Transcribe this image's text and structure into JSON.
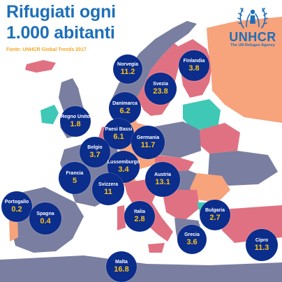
{
  "header": {
    "title_line1": "Rifugiati ogni",
    "title_line2": "1.000 abitanti",
    "source": "Fonte: UNHCR Global Trends 2017"
  },
  "logo": {
    "name": "UNHCR",
    "tagline": "The UN Refugee Agency",
    "icon": "unhcr-hands-person-laurel-icon"
  },
  "colors": {
    "title": "#1d6fb8",
    "source": "#f5a623",
    "bubble": "#0b2d8c",
    "bubble_name": "#ffffff",
    "bubble_value": "#f8c21c",
    "land_pink": "#e07182",
    "land_slate": "#7a7ea0",
    "land_salmon": "#f7a37c",
    "land_teal": "#3fc8b6"
  },
  "units": "Rifugiati ogni 1.000 abitanti",
  "countries": [
    {
      "id": "norvegia",
      "name": "Norvegia",
      "value": "11.2"
    },
    {
      "id": "finlandia",
      "name": "Finlandia",
      "value": "3.8"
    },
    {
      "id": "svezia",
      "name": "Svezia",
      "value": "23.8"
    },
    {
      "id": "danimarca",
      "name": "Danimarca",
      "value": "6.2"
    },
    {
      "id": "regno-unito",
      "name": "Regno Unito",
      "value": "1.8"
    },
    {
      "id": "paesi-bassi",
      "name": "Paesi Bassi",
      "value": "6.1"
    },
    {
      "id": "germania",
      "name": "Germania",
      "value": "11.7"
    },
    {
      "id": "belgio",
      "name": "Belgio",
      "value": "3.7"
    },
    {
      "id": "lussemburgo",
      "name": "Lussemburgo",
      "value": "3.4"
    },
    {
      "id": "francia",
      "name": "Francia",
      "value": "5"
    },
    {
      "id": "austria",
      "name": "Austria",
      "value": "13.1"
    },
    {
      "id": "svizzera",
      "name": "Svizzera",
      "value": "11"
    },
    {
      "id": "portogallo",
      "name": "Portogallo",
      "value": "0.2"
    },
    {
      "id": "spagna",
      "name": "Spagna",
      "value": "0.4"
    },
    {
      "id": "italia",
      "name": "Italia",
      "value": "2.8"
    },
    {
      "id": "bulgaria",
      "name": "Bulgaria",
      "value": "2.7"
    },
    {
      "id": "grecia",
      "name": "Grecia",
      "value": "3.6"
    },
    {
      "id": "cipro",
      "name": "Cipro",
      "value": "11.3"
    },
    {
      "id": "malta",
      "name": "Malta",
      "value": "16.8"
    }
  ]
}
